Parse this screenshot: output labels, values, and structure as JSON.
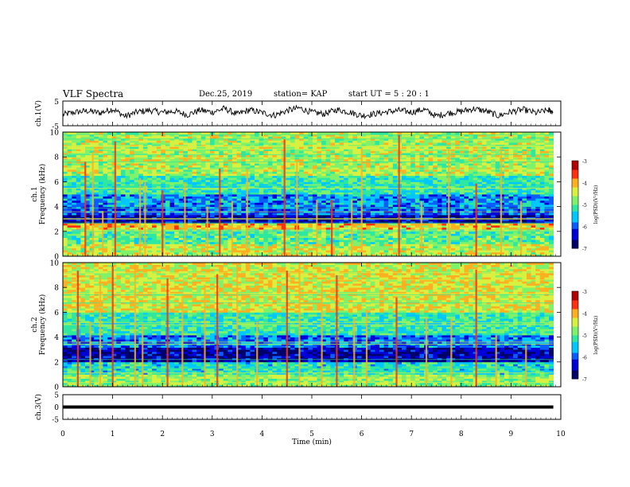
{
  "header": {
    "title": "VLF Spectra",
    "date": "Dec.25, 2019",
    "station": "station= KAP",
    "start": "start  UT =  5 : 20 : 1"
  },
  "colors": {
    "colormap": [
      "#00006a",
      "#0000d8",
      "#0a5cff",
      "#00c8ff",
      "#2ee8a0",
      "#7ef26a",
      "#d8f040",
      "#ffb020",
      "#ff3010",
      "#b00000"
    ]
  },
  "chart_data": [
    {
      "type": "line",
      "panel": "channel1-waveform",
      "ylabel": "ch.1(V)",
      "ylim": [
        -5,
        5
      ],
      "yticklabels": [
        "5",
        "-5"
      ],
      "xlim": [
        0,
        10
      ],
      "x": [
        0,
        0.25,
        0.5,
        0.75,
        1.0,
        1.25,
        1.5,
        1.75,
        2.0,
        2.25,
        2.5,
        2.75,
        3.0,
        3.25,
        3.5,
        3.75,
        4.0,
        4.25,
        4.5,
        4.75,
        5.0,
        5.25,
        5.5,
        5.75,
        6.0,
        6.25,
        6.5,
        6.75,
        7.0,
        7.25,
        7.5,
        7.75,
        8.0,
        8.25,
        8.5,
        8.75,
        9.0,
        9.25,
        9.5,
        9.75,
        9.85
      ],
      "values": [
        -0.5,
        0.5,
        1.0,
        0.2,
        1.8,
        -1.2,
        0.6,
        1.2,
        0.4,
        0.9,
        -0.6,
        1.3,
        0.5,
        2.0,
        -0.4,
        1.4,
        0.3,
        -0.8,
        1.1,
        2.2,
        0.4,
        -0.2,
        1.5,
        0.6,
        -0.9,
        -0.2,
        0.6,
        1.2,
        0.5,
        1.6,
        -1.1,
        0.2,
        0.8,
        1.9,
        0.9,
        -1.0,
        0.7,
        1.5,
        0.2,
        1.3,
        0.6
      ]
    },
    {
      "type": "heatmap",
      "panel": "channel1-spectrogram",
      "ylabel": "ch.1\nFrequency (kHz)",
      "ylim": [
        0,
        10
      ],
      "yticklabels": [
        "0",
        "2",
        "4",
        "6",
        "8",
        "10"
      ],
      "xlim": [
        0,
        9.85
      ],
      "colorbar_label": "log(PSD)(V²/Hz)",
      "colorbar_range": [
        -7,
        -3
      ],
      "colorbar_ticks": [
        "-3",
        "-4",
        "-5",
        "-6",
        "-7"
      ],
      "description_bands_khz": [
        {
          "from": 0.0,
          "to": 1.0,
          "level": -4.5
        },
        {
          "from": 1.0,
          "to": 2.2,
          "level": -5.0
        },
        {
          "from": 2.2,
          "to": 2.6,
          "level": -4.2
        },
        {
          "from": 2.6,
          "to": 3.4,
          "level": -6.6
        },
        {
          "from": 3.4,
          "to": 4.0,
          "level": -6.0
        },
        {
          "from": 4.0,
          "to": 5.0,
          "level": -5.8
        },
        {
          "from": 5.0,
          "to": 6.5,
          "level": -5.2
        },
        {
          "from": 6.5,
          "to": 10.0,
          "level": -4.6
        }
      ],
      "bursts_min": [
        0.45,
        0.6,
        0.8,
        1.05,
        1.55,
        1.65,
        2.0,
        2.45,
        2.9,
        3.15,
        3.4,
        3.7,
        4.45,
        4.7,
        5.1,
        5.4,
        5.8,
        6.0,
        6.75,
        7.2,
        7.75,
        8.3,
        8.8,
        9.2
      ]
    },
    {
      "type": "heatmap",
      "panel": "channel2-spectrogram",
      "ylabel": "ch.2\nFrequency (kHz)",
      "ylim": [
        0,
        10
      ],
      "yticklabels": [
        "0",
        "2",
        "4",
        "6",
        "8",
        "10"
      ],
      "xlim": [
        0,
        9.85
      ],
      "colorbar_label": "log(PSD)(V²/Hz)",
      "colorbar_range": [
        -7,
        -3
      ],
      "colorbar_ticks": [
        "-3",
        "-4",
        "-5",
        "-6",
        "-7"
      ],
      "description_bands_khz": [
        {
          "from": 0.0,
          "to": 1.0,
          "level": -4.8
        },
        {
          "from": 1.0,
          "to": 2.0,
          "level": -5.3
        },
        {
          "from": 2.0,
          "to": 3.2,
          "level": -6.6
        },
        {
          "from": 3.2,
          "to": 4.2,
          "level": -5.9
        },
        {
          "from": 4.2,
          "to": 6.0,
          "level": -5.2
        },
        {
          "from": 6.0,
          "to": 10.0,
          "level": -4.4
        }
      ],
      "bursts_min": [
        0.3,
        0.55,
        0.75,
        1.0,
        1.45,
        1.6,
        2.1,
        2.4,
        2.85,
        3.1,
        3.5,
        3.9,
        4.5,
        4.75,
        5.2,
        5.5,
        5.85,
        6.1,
        6.7,
        7.3,
        7.8,
        8.3,
        8.7,
        9.3
      ]
    },
    {
      "type": "line",
      "panel": "channel3-waveform",
      "ylabel": "ch.3(V)",
      "ylim": [
        -5,
        5
      ],
      "yticklabels": [
        "5",
        "0",
        "-5"
      ],
      "xlim": [
        0,
        10
      ],
      "x": [
        0,
        9.85
      ],
      "values": [
        0,
        0
      ]
    }
  ],
  "xaxis": {
    "label": "Time  (min)",
    "ticks": [
      "0",
      "1",
      "2",
      "3",
      "4",
      "5",
      "6",
      "7",
      "8",
      "9",
      "10"
    ]
  }
}
